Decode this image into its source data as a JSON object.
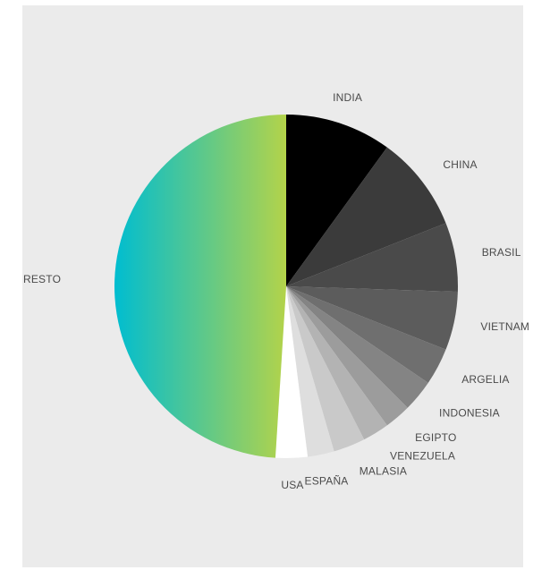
{
  "chart_data": {
    "type": "pie",
    "title": "",
    "start_angle_deg": 0,
    "direction": "clockwise",
    "slices": [
      {
        "label": "INDIA",
        "value": 10,
        "color": "#000000"
      },
      {
        "label": "CHINA",
        "value": 9,
        "color": "#3b3b3b"
      },
      {
        "label": "BRASIL",
        "value": 6.5,
        "color": "#4a4a4a"
      },
      {
        "label": "VIETNAM",
        "value": 5.5,
        "color": "#5c5c5c"
      },
      {
        "label": "ARGELIA",
        "value": 3.5,
        "color": "#6f6f6f"
      },
      {
        "label": "INDONESIA",
        "value": 3,
        "color": "#848484"
      },
      {
        "label": "EGIPTO",
        "value": 2.5,
        "color": "#9c9c9c"
      },
      {
        "label": "VENEZUELA",
        "value": 2.5,
        "color": "#b3b3b3"
      },
      {
        "label": "MALASIA",
        "value": 3,
        "color": "#c9c9c9"
      },
      {
        "label": "ESPAÑA",
        "value": 2.5,
        "color": "#dedede"
      },
      {
        "label": "USA",
        "value": 3,
        "color": "#ffffff"
      },
      {
        "label": "RESTO",
        "value": 49,
        "color": "gradient",
        "gradient": [
          "#00bdd0",
          "#b3d34a"
        ]
      }
    ]
  }
}
